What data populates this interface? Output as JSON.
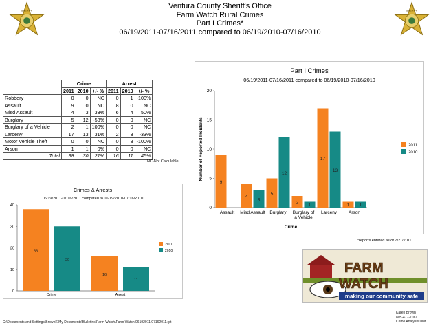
{
  "header": {
    "line1": "Ventura County Sheriff's Office",
    "line2": "Farm Watch Rural Crimes",
    "line3": "Part I Crimes*",
    "line4": "06/19/2011-07/16/2011 compared to 06/19/2010-07/16/2010"
  },
  "badge": {
    "text_top": "SHERIFF",
    "text_bottom": "VENTURA"
  },
  "table": {
    "group_headers": [
      "Crime",
      "Arrest"
    ],
    "sub_headers": [
      "2011",
      "2010",
      "+/- %",
      "2011",
      "2010",
      "+/- %"
    ],
    "rows": [
      {
        "label": "Robbery",
        "c2011": "0",
        "c2010": "0",
        "cpct": "NC",
        "a2011": "0",
        "a2010": "1",
        "apct": "-100%"
      },
      {
        "label": "Assault",
        "c2011": "9",
        "c2010": "0",
        "cpct": "NC",
        "a2011": "8",
        "a2010": "0",
        "apct": "NC"
      },
      {
        "label": "Misd  Assault",
        "c2011": "4",
        "c2010": "3",
        "cpct": "33%",
        "a2011": "6",
        "a2010": "4",
        "apct": "50%"
      },
      {
        "label": "Burglary",
        "c2011": "5",
        "c2010": "12",
        "cpct": "-58%",
        "a2011": "0",
        "a2010": "0",
        "apct": "NC"
      },
      {
        "label": "Burglary of a Vehicle",
        "c2011": "2",
        "c2010": "1",
        "cpct": "100%",
        "a2011": "0",
        "a2010": "0",
        "apct": "NC"
      },
      {
        "label": "Larceny",
        "c2011": "17",
        "c2010": "13",
        "cpct": "31%",
        "a2011": "2",
        "a2010": "3",
        "apct": "-33%"
      },
      {
        "label": "Motor Vehicle Theft",
        "c2011": "0",
        "c2010": "0",
        "cpct": "NC",
        "a2011": "0",
        "a2010": "3",
        "apct": "-100%"
      },
      {
        "label": "Arson",
        "c2011": "1",
        "c2010": "1",
        "cpct": "0%",
        "a2011": "0",
        "a2010": "0",
        "apct": "NC"
      }
    ],
    "total": {
      "label": "Total",
      "c2011": "38",
      "c2010": "30",
      "cpct": "27%",
      "a2011": "16",
      "a2010": "11",
      "apct": "45%"
    },
    "note": "NC-Not Calculable"
  },
  "chart_data": [
    {
      "type": "bar",
      "title": "Part I Crimes",
      "subtitle": "06/19/2011-07/16/2011 compared to 06/19/2010-07/16/2010",
      "xlabel": "Crime",
      "ylabel": "Number of Reported Incidents",
      "ylim": [
        0,
        20
      ],
      "yticks": [
        0,
        5,
        10,
        15,
        20
      ],
      "categories": [
        "Assault",
        "Misd Assault",
        "Burglary",
        "Burglary of a Vehicle",
        "Larceny",
        "Arson"
      ],
      "series": [
        {
          "name": "2011",
          "color": "#f58220",
          "values": [
            9,
            4,
            5,
            2,
            17,
            1
          ]
        },
        {
          "name": "2010",
          "color": "#168a86",
          "values": [
            0,
            3,
            12,
            1,
            13,
            1
          ]
        }
      ],
      "legend": "right"
    },
    {
      "type": "bar",
      "title": "Crimes & Arrests",
      "subtitle": "06/19/2011-07/16/2011 compared to 06/19/2010-07/16/2010",
      "ylim": [
        0,
        40
      ],
      "yticks": [
        0,
        10,
        20,
        30,
        40
      ],
      "categories": [
        "Crime",
        "Arrest"
      ],
      "series": [
        {
          "name": "2011",
          "color": "#f58220",
          "values": [
            38,
            16
          ]
        },
        {
          "name": "2010",
          "color": "#168a86",
          "values": [
            30,
            11
          ]
        }
      ],
      "legend": "right"
    }
  ],
  "reports_note": "*reports entered as of 7/21/2011",
  "logo": {
    "word1": "FARM",
    "word2": "WATCH",
    "tagline": "making our community safe"
  },
  "footer": {
    "path": "C:\\Documents and Settings\\BrownK\\My Documents\\Bulletins\\Farm Watch\\Farm Watch 06192011 07162011.rpt",
    "contact_name": "Karen Brown",
    "contact_phone": "805-477-7061",
    "contact_unit": "Crime Analysis Unit"
  }
}
